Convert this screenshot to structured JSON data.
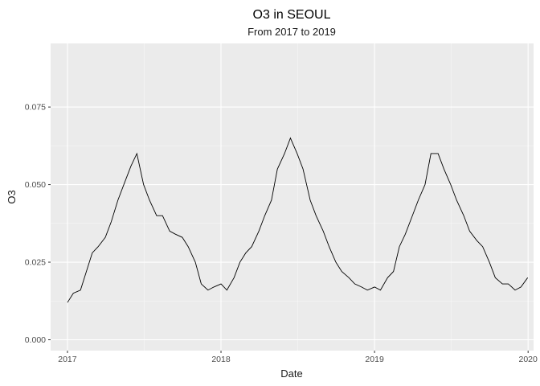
{
  "chart_data": {
    "type": "line",
    "title": "O3 in SEOUL",
    "subtitle": "From 2017 to 2019",
    "xlabel": "Date",
    "ylabel": "O3",
    "x_ticks": [
      "2017",
      "2018",
      "2019",
      "2020"
    ],
    "y_ticks": [
      "0.000",
      "0.025",
      "0.050",
      "0.075"
    ],
    "y_tick_values": [
      0,
      0.025,
      0.05,
      0.075
    ],
    "xlim": [
      "2016-11-22",
      "2020-01-14"
    ],
    "ylim": [
      -0.0035,
      0.0955
    ],
    "grid": true,
    "legend": "none",
    "colors": {
      "panel": "#ebebeb",
      "grid": "#ffffff",
      "line": "#000000"
    },
    "series": [
      {
        "x": [
          "2017-01-01",
          "2017-01-15",
          "2017-02-01",
          "2017-02-15",
          "2017-03-01",
          "2017-03-15",
          "2017-04-01",
          "2017-04-15",
          "2017-05-01",
          "2017-05-15",
          "2017-06-01",
          "2017-06-15",
          "2017-07-01",
          "2017-07-15",
          "2017-08-01",
          "2017-08-15",
          "2017-09-01",
          "2017-09-15",
          "2017-10-01",
          "2017-10-15",
          "2017-11-01",
          "2017-11-15",
          "2017-12-01",
          "2017-12-15",
          "2018-01-01",
          "2018-01-15",
          "2018-02-01",
          "2018-02-15",
          "2018-03-01",
          "2018-03-15",
          "2018-04-01",
          "2018-04-15",
          "2018-05-01",
          "2018-05-15",
          "2018-06-01",
          "2018-06-15",
          "2018-07-01",
          "2018-07-15",
          "2018-08-01",
          "2018-08-15",
          "2018-09-01",
          "2018-09-15",
          "2018-10-01",
          "2018-10-15",
          "2018-11-01",
          "2018-11-15",
          "2018-12-01",
          "2018-12-15",
          "2019-01-01",
          "2019-01-15",
          "2019-02-01",
          "2019-02-15",
          "2019-03-01",
          "2019-03-15",
          "2019-04-01",
          "2019-04-15",
          "2019-05-01",
          "2019-05-15",
          "2019-06-01",
          "2019-06-15",
          "2019-07-01",
          "2019-07-15",
          "2019-08-01",
          "2019-08-15",
          "2019-09-01",
          "2019-09-15",
          "2019-10-01",
          "2019-10-15",
          "2019-11-01",
          "2019-11-15",
          "2019-12-01",
          "2019-12-15",
          "2019-12-31"
        ],
        "y": [
          0.012,
          0.015,
          0.016,
          0.022,
          0.028,
          0.03,
          0.033,
          0.038,
          0.045,
          0.05,
          0.056,
          0.06,
          0.05,
          0.045,
          0.04,
          0.04,
          0.035,
          0.034,
          0.033,
          0.03,
          0.025,
          0.018,
          0.016,
          0.017,
          0.018,
          0.016,
          0.02,
          0.025,
          0.028,
          0.03,
          0.035,
          0.04,
          0.045,
          0.055,
          0.06,
          0.065,
          0.06,
          0.055,
          0.045,
          0.04,
          0.035,
          0.03,
          0.025,
          0.022,
          0.02,
          0.018,
          0.017,
          0.016,
          0.017,
          0.016,
          0.02,
          0.022,
          0.03,
          0.034,
          0.04,
          0.045,
          0.05,
          0.06,
          0.06,
          0.055,
          0.05,
          0.045,
          0.04,
          0.035,
          0.032,
          0.03,
          0.025,
          0.02,
          0.018,
          0.018,
          0.016,
          0.017,
          0.02
        ]
      }
    ]
  }
}
